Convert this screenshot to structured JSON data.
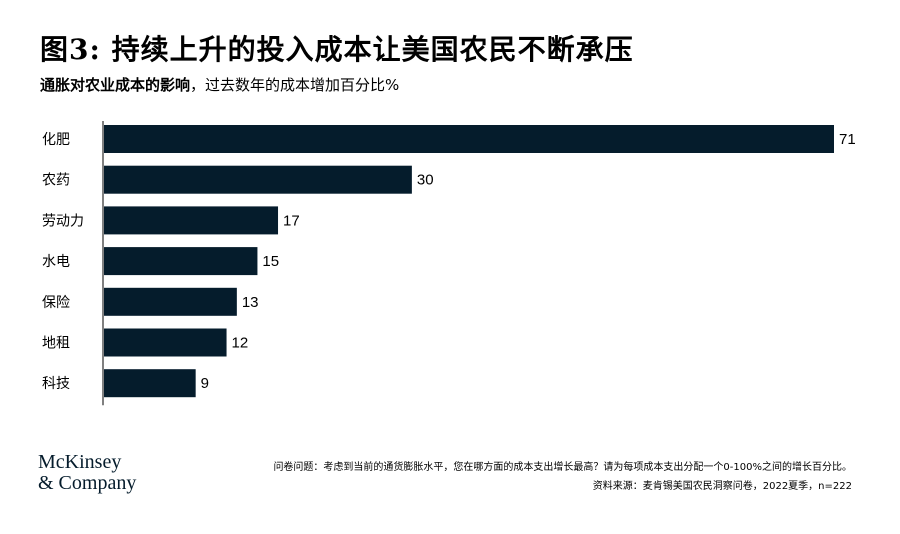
{
  "chart_data": {
    "type": "bar",
    "orientation": "horizontal",
    "title": "图3: 持续上升的投入成本让美国农民不断承压",
    "subtitle_bold": "通胀对农业成本的影响",
    "subtitle_rest": "，过去数年的成本增加百分比%",
    "categories": [
      "化肥",
      "农药",
      "劳动力",
      "水电",
      "保险",
      "地租",
      "科技"
    ],
    "values": [
      71,
      30,
      17,
      15,
      13,
      12,
      9
    ],
    "xlim": [
      0,
      71
    ],
    "bar_color": "#051c2c",
    "grid": false,
    "legend": "none"
  },
  "footer": {
    "brand_line1": "McKinsey",
    "brand_line2": "& Company",
    "note": "问卷问题：考虑到当前的通货膨胀水平，您在哪方面的成本支出增长最高？请为每项成本支出分配一个0-100%之间的增长百分比。",
    "source": "资料来源：麦肯锡美国农民洞察问卷，2022夏季，n=222"
  }
}
